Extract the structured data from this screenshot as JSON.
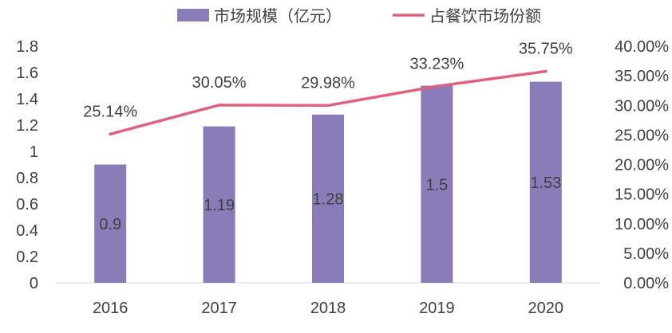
{
  "chart_data": {
    "type": "bar",
    "categories": [
      "2016",
      "2017",
      "2018",
      "2019",
      "2020"
    ],
    "series": [
      {
        "name": "市场规模（亿元）",
        "type": "bar",
        "axis": "left",
        "values": [
          0.9,
          1.19,
          1.28,
          1.5,
          1.53
        ],
        "labels": [
          "0.9",
          "1.19",
          "1.28",
          "1.5",
          "1.53"
        ]
      },
      {
        "name": "占餐饮市场份额",
        "type": "line",
        "axis": "right",
        "values": [
          25.14,
          30.05,
          29.98,
          33.23,
          35.75
        ],
        "labels": [
          "25.14%",
          "30.05%",
          "29.98%",
          "33.23%",
          "35.75%"
        ]
      }
    ],
    "y_left": {
      "ylim": [
        0,
        1.8
      ],
      "ticks": [
        "0",
        "0.2",
        "0.4",
        "0.6",
        "0.8",
        "1",
        "1.2",
        "1.4",
        "1.6",
        "1.8"
      ]
    },
    "y_right": {
      "ylim": [
        0,
        40
      ],
      "ticks": [
        "0.00%",
        "5.00%",
        "10.00%",
        "15.00%",
        "20.00%",
        "25.00%",
        "30.00%",
        "35.00%",
        "40.00%"
      ]
    },
    "legend_position": "top",
    "grid": false,
    "colors": {
      "bar": "#8a7cb8",
      "line": "#e0607e",
      "text": "#404040",
      "axis": "#d9d9d9"
    }
  }
}
